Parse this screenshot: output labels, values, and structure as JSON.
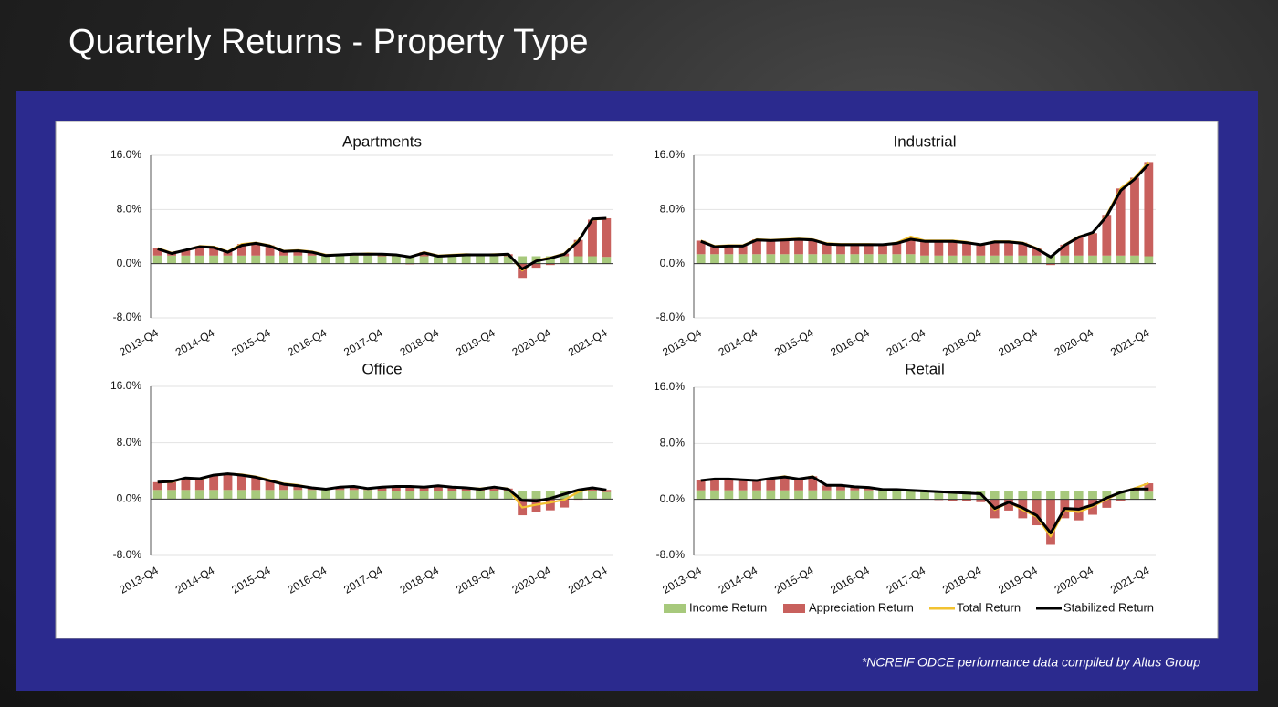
{
  "title": "Quarterly Returns - Property Type",
  "footnote": "*NCREIF ODCE performance data compiled by Altus Group",
  "chart_data": [
    {
      "type": "bar",
      "title": "Apartments",
      "categories": [
        "2013-Q4",
        null,
        null,
        null,
        "2014-Q4",
        null,
        null,
        null,
        "2015-Q4",
        null,
        null,
        null,
        "2016-Q4",
        null,
        null,
        null,
        "2017-Q4",
        null,
        null,
        null,
        "2018-Q4",
        null,
        null,
        null,
        "2019-Q4",
        null,
        null,
        null,
        "2020-Q4",
        null,
        null,
        null,
        "2021-Q4"
      ],
      "ylim": [
        -8,
        16
      ],
      "yticks": [
        {
          "value": -8,
          "label": "-8.0%"
        },
        {
          "value": 0,
          "label": "0.0%"
        },
        {
          "value": 8,
          "label": "8.0%"
        },
        {
          "value": 16,
          "label": "16.0%"
        }
      ],
      "grid": true,
      "stacked": true,
      "series": [
        {
          "name": "Income Return",
          "type": "bar",
          "color": "#a7c97c",
          "values": [
            1.2,
            1.2,
            1.2,
            1.2,
            1.2,
            1.2,
            1.2,
            1.2,
            1.2,
            1.2,
            1.2,
            1.2,
            1.2,
            1.2,
            1.2,
            1.2,
            1.1,
            1.1,
            1.1,
            1.1,
            1.1,
            1.1,
            1.1,
            1.1,
            1.1,
            1.1,
            1.1,
            1.1,
            1.1,
            1.1,
            1.1,
            1.1,
            1.0
          ]
        },
        {
          "name": "Appreciation Return",
          "type": "bar",
          "color": "#c8605d",
          "values": [
            1.1,
            0.4,
            0.8,
            1.4,
            1.3,
            0.6,
            1.7,
            1.9,
            1.5,
            0.7,
            0.8,
            0.6,
            0.1,
            0.1,
            0.2,
            0.3,
            0.3,
            0.2,
            -0.1,
            0.6,
            0.1,
            0.2,
            0.3,
            0.2,
            0.3,
            0.3,
            -2.1,
            -0.6,
            -0.2,
            0.4,
            2.4,
            5.4,
            5.7
          ]
        },
        {
          "name": "Total Return",
          "type": "line",
          "color": "#f2c230",
          "values": [
            2.3,
            1.6,
            2.0,
            2.6,
            2.5,
            1.8,
            2.9,
            3.1,
            2.7,
            1.9,
            2.0,
            1.8,
            1.3,
            1.3,
            1.4,
            1.5,
            1.4,
            1.3,
            1.0,
            1.7,
            1.2,
            1.3,
            1.4,
            1.3,
            1.4,
            1.4,
            -1.0,
            0.5,
            0.9,
            1.5,
            3.5,
            6.5,
            6.7
          ]
        },
        {
          "name": "Stabilized Return",
          "type": "line",
          "color": "#000000",
          "values": [
            2.2,
            1.5,
            2.0,
            2.5,
            2.4,
            1.7,
            2.7,
            3.0,
            2.6,
            1.8,
            1.9,
            1.7,
            1.2,
            1.3,
            1.4,
            1.4,
            1.4,
            1.3,
            1.0,
            1.6,
            1.1,
            1.2,
            1.3,
            1.3,
            1.3,
            1.4,
            -0.8,
            0.4,
            0.8,
            1.4,
            3.3,
            6.6,
            6.7
          ]
        }
      ]
    },
    {
      "type": "bar",
      "title": "Industrial",
      "categories": [
        "2013-Q4",
        null,
        null,
        null,
        "2014-Q4",
        null,
        null,
        null,
        "2015-Q4",
        null,
        null,
        null,
        "2016-Q4",
        null,
        null,
        null,
        "2017-Q4",
        null,
        null,
        null,
        "2018-Q4",
        null,
        null,
        null,
        "2019-Q4",
        null,
        null,
        null,
        "2020-Q4",
        null,
        null,
        null,
        "2021-Q4"
      ],
      "ylim": [
        -8,
        16
      ],
      "yticks": [
        {
          "value": -8,
          "label": "-8.0%"
        },
        {
          "value": 0,
          "label": "0.0%"
        },
        {
          "value": 8,
          "label": "8.0%"
        },
        {
          "value": 16,
          "label": "16.0%"
        }
      ],
      "grid": true,
      "stacked": true,
      "series": [
        {
          "name": "Income Return",
          "type": "bar",
          "color": "#a7c97c",
          "values": [
            1.4,
            1.4,
            1.4,
            1.4,
            1.4,
            1.4,
            1.4,
            1.4,
            1.4,
            1.4,
            1.4,
            1.4,
            1.4,
            1.4,
            1.4,
            1.4,
            1.2,
            1.2,
            1.2,
            1.2,
            1.2,
            1.2,
            1.2,
            1.2,
            1.2,
            1.2,
            1.2,
            1.2,
            1.2,
            1.2,
            1.2,
            1.2,
            1.1
          ]
        },
        {
          "name": "Appreciation Return",
          "type": "bar",
          "color": "#c8605d",
          "values": [
            2.0,
            1.2,
            1.3,
            1.3,
            2.2,
            2.1,
            2.2,
            2.3,
            2.2,
            1.6,
            1.5,
            1.5,
            1.5,
            1.4,
            1.7,
            2.6,
            2.2,
            2.2,
            2.2,
            2.0,
            1.6,
            2.1,
            2.1,
            1.9,
            1.1,
            -0.2,
            1.6,
            2.8,
            3.3,
            6.0,
            9.9,
            11.5,
            13.9
          ]
        },
        {
          "name": "Total Return",
          "type": "line",
          "color": "#f2c230",
          "values": [
            3.4,
            2.6,
            2.7,
            2.7,
            3.6,
            3.5,
            3.6,
            3.7,
            3.6,
            3.0,
            2.9,
            2.9,
            2.9,
            2.8,
            3.1,
            4.0,
            3.4,
            3.4,
            3.4,
            3.2,
            2.8,
            3.3,
            3.3,
            3.1,
            2.3,
            1.0,
            2.8,
            4.0,
            4.5,
            7.2,
            11.1,
            12.7,
            15.0
          ]
        },
        {
          "name": "Stabilized Return",
          "type": "line",
          "color": "#000000",
          "values": [
            3.3,
            2.5,
            2.6,
            2.6,
            3.5,
            3.4,
            3.5,
            3.6,
            3.5,
            2.9,
            2.8,
            2.8,
            2.8,
            2.8,
            3.0,
            3.6,
            3.3,
            3.3,
            3.3,
            3.1,
            2.8,
            3.2,
            3.2,
            3.0,
            2.2,
            1.0,
            2.7,
            3.9,
            4.6,
            7.0,
            10.8,
            12.5,
            14.7
          ]
        }
      ]
    },
    {
      "type": "bar",
      "title": "Office",
      "categories": [
        "2013-Q4",
        null,
        null,
        null,
        "2014-Q4",
        null,
        null,
        null,
        "2015-Q4",
        null,
        null,
        null,
        "2016-Q4",
        null,
        null,
        null,
        "2017-Q4",
        null,
        null,
        null,
        "2018-Q4",
        null,
        null,
        null,
        "2019-Q4",
        null,
        null,
        null,
        "2020-Q4",
        null,
        null,
        null,
        "2021-Q4"
      ],
      "ylim": [
        -8,
        16
      ],
      "yticks": [
        {
          "value": -8,
          "label": "-8.0%"
        },
        {
          "value": 0,
          "label": "0.0%"
        },
        {
          "value": 8,
          "label": "8.0%"
        },
        {
          "value": 16,
          "label": "16.0%"
        }
      ],
      "grid": true,
      "stacked": true,
      "series": [
        {
          "name": "Income Return",
          "type": "bar",
          "color": "#a7c97c",
          "values": [
            1.3,
            1.3,
            1.3,
            1.3,
            1.3,
            1.3,
            1.3,
            1.3,
            1.3,
            1.3,
            1.3,
            1.3,
            1.3,
            1.3,
            1.3,
            1.3,
            1.1,
            1.1,
            1.1,
            1.1,
            1.1,
            1.1,
            1.1,
            1.1,
            1.1,
            1.1,
            1.1,
            1.1,
            1.1,
            1.1,
            1.1,
            1.1,
            1.0
          ]
        },
        {
          "name": "Appreciation Return",
          "type": "bar",
          "color": "#c8605d",
          "values": [
            1.1,
            1.1,
            1.7,
            1.5,
            2.1,
            2.3,
            2.2,
            1.9,
            1.4,
            0.9,
            0.7,
            0.3,
            0.1,
            0.4,
            0.5,
            0.2,
            0.6,
            0.7,
            0.7,
            0.6,
            0.8,
            0.6,
            0.5,
            0.4,
            0.6,
            0.4,
            -2.3,
            -1.9,
            -1.6,
            -1.2,
            -0.1,
            0.5,
            0.3
          ]
        },
        {
          "name": "Total Return",
          "type": "line",
          "color": "#f2c230",
          "values": [
            2.4,
            2.4,
            3.0,
            2.8,
            3.4,
            3.6,
            3.5,
            3.2,
            2.7,
            2.2,
            2.0,
            1.6,
            1.4,
            1.7,
            1.8,
            1.5,
            1.7,
            1.8,
            1.8,
            1.7,
            1.9,
            1.7,
            1.6,
            1.5,
            1.7,
            1.5,
            -1.2,
            -0.8,
            -0.5,
            -0.1,
            1.0,
            1.6,
            1.3
          ]
        },
        {
          "name": "Stabilized Return",
          "type": "line",
          "color": "#000000",
          "values": [
            2.4,
            2.5,
            3.0,
            2.9,
            3.4,
            3.6,
            3.4,
            3.1,
            2.6,
            2.1,
            1.9,
            1.6,
            1.4,
            1.7,
            1.8,
            1.5,
            1.7,
            1.8,
            1.8,
            1.7,
            1.9,
            1.7,
            1.6,
            1.4,
            1.7,
            1.4,
            -0.2,
            -0.3,
            0.1,
            0.7,
            1.3,
            1.6,
            1.3
          ]
        }
      ]
    },
    {
      "type": "bar",
      "title": "Retail",
      "categories": [
        "2013-Q4",
        null,
        null,
        null,
        "2014-Q4",
        null,
        null,
        null,
        "2015-Q4",
        null,
        null,
        null,
        "2016-Q4",
        null,
        null,
        null,
        "2017-Q4",
        null,
        null,
        null,
        "2018-Q4",
        null,
        null,
        null,
        "2019-Q4",
        null,
        null,
        null,
        "2020-Q4",
        null,
        null,
        null,
        "2021-Q4"
      ],
      "ylim": [
        -8,
        16
      ],
      "yticks": [
        {
          "value": -8,
          "label": "-8.0%"
        },
        {
          "value": 0,
          "label": "0.0%"
        },
        {
          "value": 8,
          "label": "8.0%"
        },
        {
          "value": 16,
          "label": "16.0%"
        }
      ],
      "grid": true,
      "stacked": true,
      "legend": "bottom-right",
      "series": [
        {
          "name": "Income Return",
          "type": "bar",
          "color": "#a7c97c",
          "values": [
            1.3,
            1.3,
            1.3,
            1.3,
            1.3,
            1.3,
            1.3,
            1.3,
            1.3,
            1.3,
            1.3,
            1.3,
            1.3,
            1.3,
            1.3,
            1.3,
            1.2,
            1.2,
            1.2,
            1.2,
            1.2,
            1.2,
            1.2,
            1.2,
            1.2,
            1.2,
            1.2,
            1.2,
            1.2,
            1.2,
            1.2,
            1.2,
            1.1
          ]
        },
        {
          "name": "Appreciation Return",
          "type": "bar",
          "color": "#c8605d",
          "values": [
            1.4,
            1.6,
            1.6,
            1.5,
            1.4,
            1.7,
            2.0,
            1.6,
            2.0,
            0.7,
            0.7,
            0.5,
            0.4,
            0.1,
            0.1,
            0.0,
            0.0,
            -0.1,
            -0.2,
            -0.3,
            -0.4,
            -2.7,
            -1.6,
            -2.7,
            -3.7,
            -6.5,
            -2.7,
            -3.0,
            -2.2,
            -1.2,
            -0.2,
            0.4,
            1.2
          ]
        },
        {
          "name": "Total Return",
          "type": "line",
          "color": "#f2c230",
          "values": [
            2.7,
            2.9,
            2.9,
            2.8,
            2.7,
            3.0,
            3.3,
            2.9,
            3.3,
            2.0,
            2.0,
            1.8,
            1.7,
            1.4,
            1.4,
            1.3,
            1.2,
            1.1,
            1.0,
            0.9,
            0.8,
            -1.5,
            -0.4,
            -1.5,
            -2.5,
            -5.3,
            -1.5,
            -1.8,
            -1.0,
            0.0,
            1.0,
            1.6,
            2.3
          ]
        },
        {
          "name": "Stabilized Return",
          "type": "line",
          "color": "#000000",
          "values": [
            2.7,
            2.9,
            2.9,
            2.8,
            2.7,
            3.0,
            3.2,
            2.9,
            3.2,
            2.0,
            2.0,
            1.8,
            1.7,
            1.4,
            1.4,
            1.3,
            1.2,
            1.1,
            1.0,
            0.9,
            0.8,
            -1.3,
            -0.4,
            -1.2,
            -2.3,
            -4.8,
            -1.3,
            -1.4,
            -0.8,
            0.2,
            1.0,
            1.5,
            1.5
          ]
        }
      ]
    }
  ]
}
